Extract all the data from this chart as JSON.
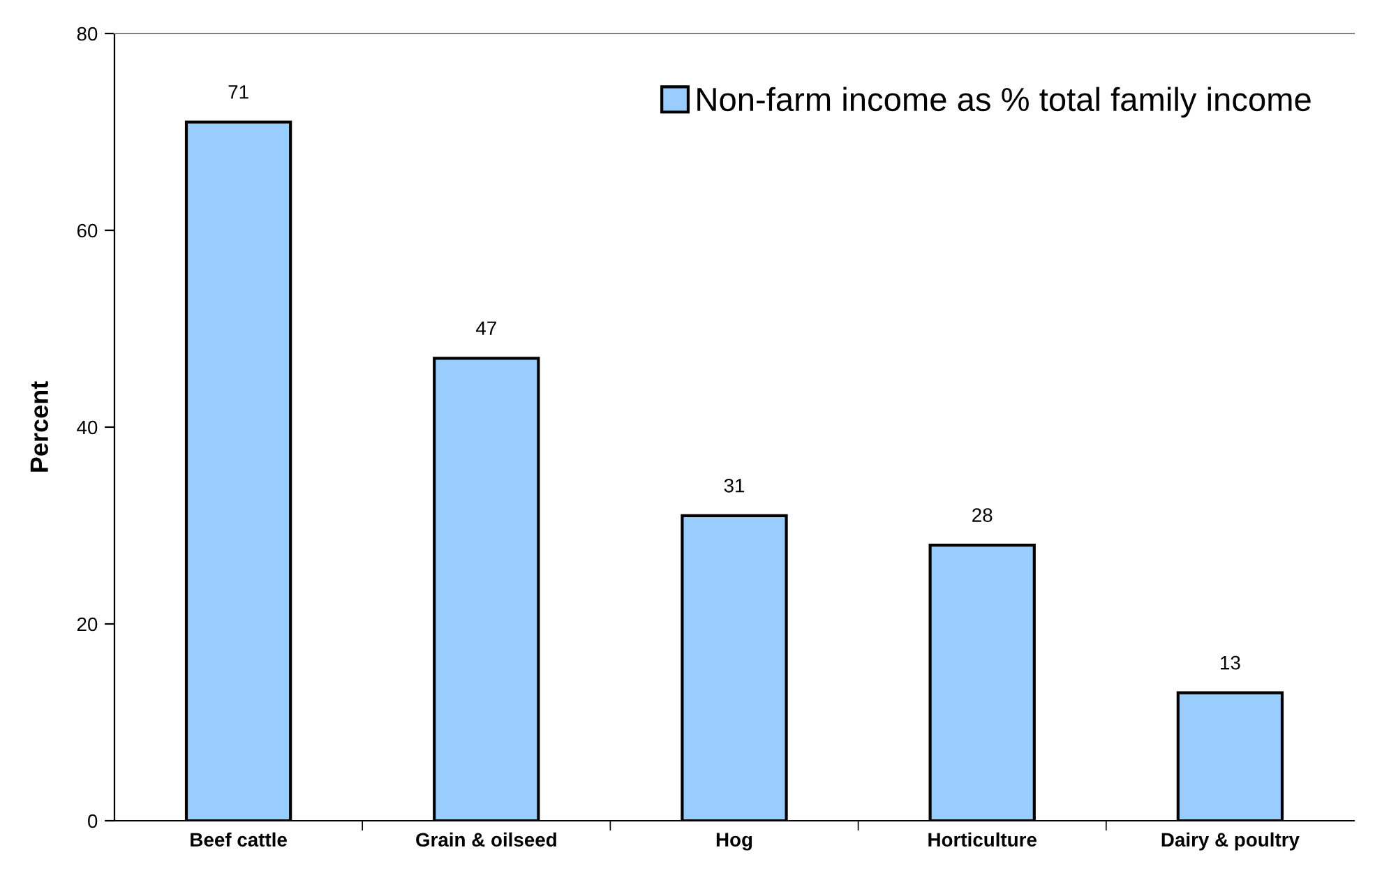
{
  "chart_data": {
    "type": "bar",
    "ylabel": "Percent",
    "categories": [
      "Beef cattle",
      "Grain & oilseed",
      "Hog",
      "Horticulture",
      "Dairy & poultry"
    ],
    "series": [
      {
        "name": "Non-farm income as % total family income",
        "color": "#99ccff",
        "values": [
          71,
          47,
          31,
          28,
          13
        ]
      }
    ],
    "ylim": [
      0,
      80
    ],
    "yticks": [
      0,
      20,
      40,
      60,
      80
    ],
    "data_labels": true,
    "grid": false,
    "legend": "top right"
  }
}
